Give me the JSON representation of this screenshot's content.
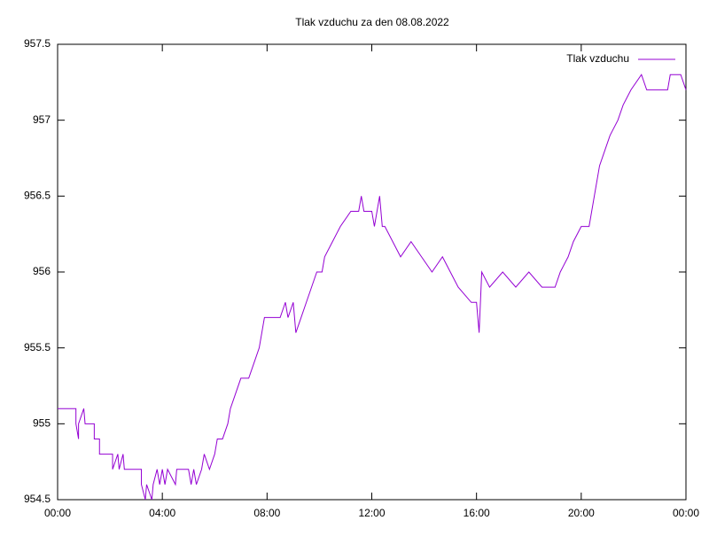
{
  "chart_data": {
    "type": "line",
    "title": "Tlak vzduchu za den 08.08.2022",
    "x": [
      0,
      0.7,
      0.7,
      0.8,
      0.8,
      1.0,
      1.05,
      1.4,
      1.4,
      1.6,
      1.6,
      2.1,
      2.1,
      2.3,
      2.35,
      2.5,
      2.55,
      3.2,
      3.2,
      3.35,
      3.4,
      3.6,
      3.65,
      3.8,
      3.9,
      4.0,
      4.1,
      4.2,
      4.5,
      4.55,
      5.0,
      5.1,
      5.2,
      5.3,
      5.5,
      5.6,
      5.8,
      6.0,
      6.1,
      6.3,
      6.5,
      6.6,
      6.8,
      7.0,
      7.3,
      7.5,
      7.7,
      7.8,
      7.9,
      8.5,
      8.7,
      8.8,
      9.0,
      9.1,
      9.3,
      9.5,
      9.7,
      9.9,
      10.1,
      10.2,
      10.5,
      10.8,
      11.2,
      11.5,
      11.6,
      11.7,
      12.0,
      12.1,
      12.2,
      12.3,
      12.4,
      12.5,
      12.8,
      13.1,
      13.5,
      13.9,
      14.3,
      14.7,
      15.0,
      15.3,
      15.8,
      16.0,
      16.1,
      16.2,
      16.5,
      17.0,
      17.5,
      18.0,
      18.5,
      19.0,
      19.2,
      19.5,
      19.7,
      20.0,
      20.3,
      20.5,
      20.7,
      20.9,
      21.1,
      21.4,
      21.6,
      21.9,
      22.3,
      22.5,
      23.3,
      23.4,
      23.8,
      24
    ],
    "series": [
      {
        "name": "Tlak vzduchu",
        "color": "#9400d3",
        "values": [
          955.1,
          955.1,
          955.0,
          954.9,
          955.0,
          955.1,
          955.0,
          955.0,
          954.9,
          954.9,
          954.8,
          954.8,
          954.7,
          954.8,
          954.7,
          954.8,
          954.7,
          954.7,
          954.6,
          954.5,
          954.6,
          954.5,
          954.6,
          954.7,
          954.6,
          954.7,
          954.6,
          954.7,
          954.6,
          954.7,
          954.7,
          954.6,
          954.7,
          954.6,
          954.7,
          954.8,
          954.7,
          954.8,
          954.9,
          954.9,
          955.0,
          955.1,
          955.2,
          955.3,
          955.3,
          955.4,
          955.5,
          955.6,
          955.7,
          955.7,
          955.8,
          955.7,
          955.8,
          955.6,
          955.7,
          955.8,
          955.9,
          956.0,
          956.0,
          956.1,
          956.2,
          956.3,
          956.4,
          956.4,
          956.5,
          956.4,
          956.4,
          956.3,
          956.4,
          956.5,
          956.3,
          956.3,
          956.2,
          956.1,
          956.2,
          956.1,
          956.0,
          956.1,
          956.0,
          955.9,
          955.8,
          955.8,
          955.6,
          956.0,
          955.9,
          956.0,
          955.9,
          956.0,
          955.9,
          955.9,
          956.0,
          956.1,
          956.2,
          956.3,
          956.3,
          956.5,
          956.7,
          956.8,
          956.9,
          957.0,
          957.1,
          957.2,
          957.3,
          957.2,
          957.2,
          957.3,
          957.3,
          957.2
        ]
      }
    ],
    "xlim": [
      0,
      24
    ],
    "xticks": [
      {
        "value": 0,
        "label": "00:00"
      },
      {
        "value": 4,
        "label": "04:00"
      },
      {
        "value": 8,
        "label": "08:00"
      },
      {
        "value": 12,
        "label": "12:00"
      },
      {
        "value": 16,
        "label": "16:00"
      },
      {
        "value": 20,
        "label": "20:00"
      },
      {
        "value": 24,
        "label": "00:00"
      }
    ],
    "ylim": [
      954.5,
      957.5
    ],
    "yticks": [
      954.5,
      955,
      955.5,
      956,
      956.5,
      957,
      957.5
    ],
    "grid": false,
    "legend": "top-right"
  }
}
